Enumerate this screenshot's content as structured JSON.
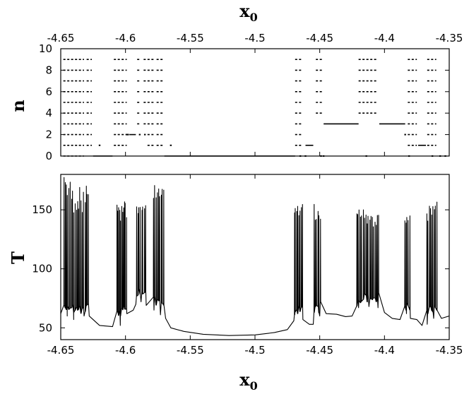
{
  "figure": {
    "top_axis_label": "x",
    "top_axis_label_sub": "0",
    "bottom_axis_label": "x",
    "bottom_axis_label_sub": "0"
  },
  "chart_data": [
    {
      "type": "scatter",
      "panel": "top",
      "ylabel": "n",
      "xlim": [
        -4.65,
        -4.35
      ],
      "ylim": [
        0,
        10
      ],
      "x_ticks": [
        "-4.65",
        "-4.6",
        "-4.55",
        "-4.5",
        "-4.45",
        "-4.4",
        "-4.35"
      ],
      "y_ticks": [
        "0",
        "2",
        "4",
        "6",
        "8",
        "10"
      ],
      "x_tick_positions": [
        -4.65,
        -4.6,
        -4.55,
        -4.5,
        -4.45,
        -4.4,
        -4.35
      ],
      "y_tick_positions": [
        0,
        2,
        4,
        6,
        8,
        10
      ],
      "x_ticks_on_top": true,
      "grid": false,
      "dashed_bands": [
        [
          -4.648,
          -4.632,
          0,
          9
        ],
        [
          -4.63,
          -4.626,
          1,
          9
        ],
        [
          -4.609,
          -4.599,
          1,
          9
        ],
        [
          -4.591,
          -4.588,
          3,
          9
        ],
        [
          -4.586,
          -4.584,
          3,
          9
        ],
        [
          -4.583,
          -4.578,
          1,
          9
        ],
        [
          -4.576,
          -4.571,
          1,
          9
        ],
        [
          -4.469,
          -4.463,
          1,
          9
        ],
        [
          -4.453,
          -4.448,
          4,
          9
        ],
        [
          -4.42,
          -4.406,
          4,
          9
        ],
        [
          -4.382,
          -4.375,
          1,
          9
        ],
        [
          -4.367,
          -4.36,
          1,
          9
        ]
      ],
      "plateaus": [
        [
          -4.625,
          -4.61,
          0
        ],
        [
          -4.597,
          -4.592,
          2
        ],
        [
          -4.57,
          -4.469,
          0
        ],
        [
          -4.461,
          -4.455,
          1
        ],
        [
          -4.447,
          -4.42,
          3
        ],
        [
          -4.404,
          -4.384,
          3
        ],
        [
          -4.374,
          -4.368,
          1
        ]
      ],
      "points": [
        [
          -4.599,
          2
        ],
        [
          -4.598,
          2
        ],
        [
          -4.589,
          2
        ],
        [
          -4.585,
          2
        ],
        [
          -4.465,
          0
        ],
        [
          -4.461,
          0
        ],
        [
          -4.449,
          0
        ],
        [
          -4.447,
          0
        ],
        [
          -4.414,
          0
        ],
        [
          -4.384,
          2
        ],
        [
          -4.381,
          0
        ],
        [
          -4.363,
          0
        ],
        [
          -4.357,
          0
        ],
        [
          -4.353,
          0
        ],
        [
          -4.62,
          1
        ],
        [
          -4.565,
          1
        ]
      ]
    },
    {
      "type": "line",
      "panel": "bottom",
      "ylabel": "T",
      "xlim": [
        -4.65,
        -4.35
      ],
      "ylim": [
        40,
        180
      ],
      "x_ticks": [
        "-4.65",
        "-4.6",
        "-4.55",
        "-4.5",
        "-4.45",
        "-4.4",
        "-4.35"
      ],
      "y_ticks": [
        "50",
        "100",
        "150"
      ],
      "x_tick_positions": [
        -4.65,
        -4.6,
        -4.55,
        -4.5,
        -4.45,
        -4.4,
        -4.35
      ],
      "y_tick_positions": [
        50,
        100,
        150
      ],
      "grid": false,
      "baseline": [
        [
          -4.65,
          62
        ],
        [
          -4.645,
          60
        ],
        [
          -4.64,
          57
        ],
        [
          -4.632,
          60
        ],
        [
          -4.628,
          60
        ],
        [
          -4.626,
          58
        ],
        [
          -4.62,
          52
        ],
        [
          -4.61,
          51
        ],
        [
          -4.604,
          52
        ],
        [
          -4.599,
          62
        ],
        [
          -4.594,
          65
        ],
        [
          -4.592,
          70
        ],
        [
          -4.588,
          72
        ],
        [
          -4.584,
          69
        ],
        [
          -4.578,
          65
        ],
        [
          -4.573,
          61
        ],
        [
          -4.569,
          58
        ],
        [
          -4.565,
          50
        ],
        [
          -4.555,
          47
        ],
        [
          -4.54,
          44.5
        ],
        [
          -4.52,
          43.5
        ],
        [
          -4.5,
          44
        ],
        [
          -4.485,
          46
        ],
        [
          -4.475,
          48.5
        ],
        [
          -4.47,
          56
        ],
        [
          -4.463,
          57
        ],
        [
          -4.458,
          53
        ],
        [
          -4.455,
          53
        ],
        [
          -4.45,
          60
        ],
        [
          -4.445,
          62
        ],
        [
          -4.437,
          61.5
        ],
        [
          -4.43,
          59.5
        ],
        [
          -4.425,
          60
        ],
        [
          -4.42,
          67
        ],
        [
          -4.412,
          68
        ],
        [
          -4.405,
          67
        ],
        [
          -4.4,
          63
        ],
        [
          -4.394,
          58
        ],
        [
          -4.388,
          57
        ],
        [
          -4.383,
          62
        ],
        [
          -4.38,
          58
        ],
        [
          -4.375,
          57
        ],
        [
          -4.371,
          52
        ],
        [
          -4.367,
          53
        ],
        [
          -4.362,
          58
        ],
        [
          -4.356,
          58
        ],
        [
          -4.35,
          60
        ]
      ],
      "spike_bands": [
        [
          -4.648,
          -4.628,
          21,
          145,
          178
        ],
        [
          -4.607,
          -4.599,
          11,
          140,
          158
        ],
        [
          -4.592,
          -4.584,
          8,
          145,
          158
        ],
        [
          -4.579,
          -4.57,
          9,
          150,
          176
        ],
        [
          -4.47,
          -4.463,
          8,
          145,
          159
        ],
        [
          -4.455,
          -4.449,
          6,
          140,
          155
        ],
        [
          -4.422,
          -4.404,
          18,
          135,
          150
        ],
        [
          -4.385,
          -4.38,
          5,
          135,
          145
        ],
        [
          -4.368,
          -4.359,
          9,
          140,
          158
        ]
      ]
    }
  ]
}
